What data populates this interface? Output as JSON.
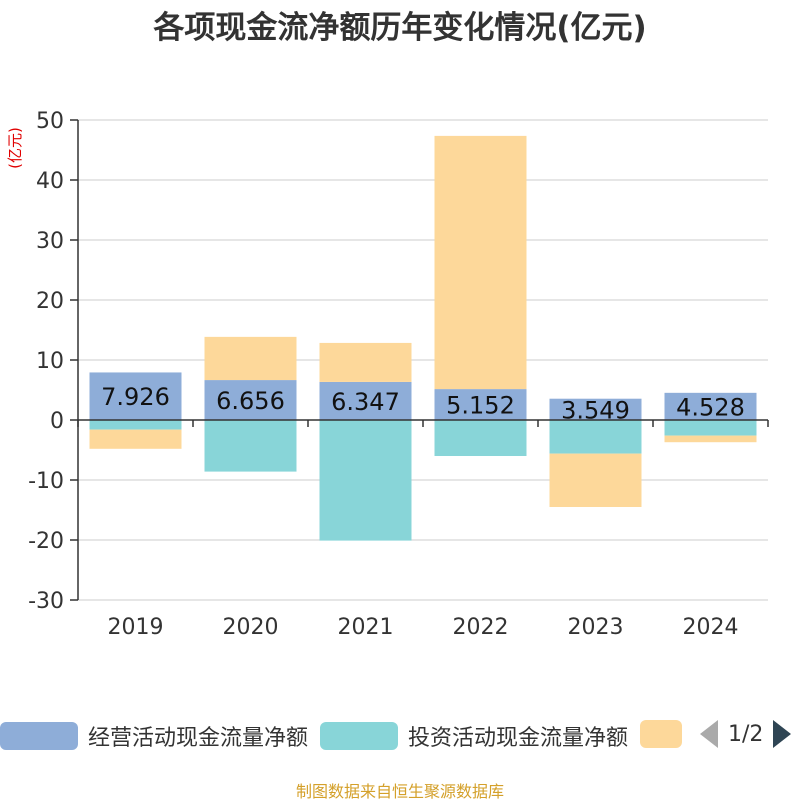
{
  "chart_data": {
    "type": "bar",
    "stacked": true,
    "title": "各项现金流净额历年变化情况(亿元)",
    "ylabel": "(亿元)",
    "ylim": [
      -30,
      50
    ],
    "yticks": [
      50,
      40,
      30,
      20,
      10,
      0,
      -10,
      -20,
      -30
    ],
    "categories": [
      "2019",
      "2020",
      "2021",
      "2022",
      "2023",
      "2024"
    ],
    "series": [
      {
        "name": "经营活动现金流量净额",
        "color": "#8eadd8",
        "values": [
          7.926,
          6.656,
          6.347,
          5.152,
          3.549,
          4.528
        ]
      },
      {
        "name": "投资活动现金流量净额",
        "color": "#88d5d8",
        "values": [
          -1.6,
          -8.6,
          -20.1,
          -6.0,
          -5.6,
          -2.6
        ]
      },
      {
        "name": "",
        "color": "#fdd89a",
        "values": [
          -3.2,
          7.2,
          6.5,
          42.2,
          -8.9,
          -1.1
        ]
      }
    ],
    "data_labels": [
      "7.926",
      "6.656",
      "6.347",
      "5.152",
      "3.549",
      "4.528"
    ],
    "grid": true,
    "legend_position": "bottom"
  },
  "legend": {
    "page": "1/2"
  },
  "source": "制图数据来自恒生聚源数据库",
  "colors": {
    "axis": "#333333",
    "grid": "#cccccc",
    "ylabel": "#e00000",
    "source": "#d4a02a"
  }
}
